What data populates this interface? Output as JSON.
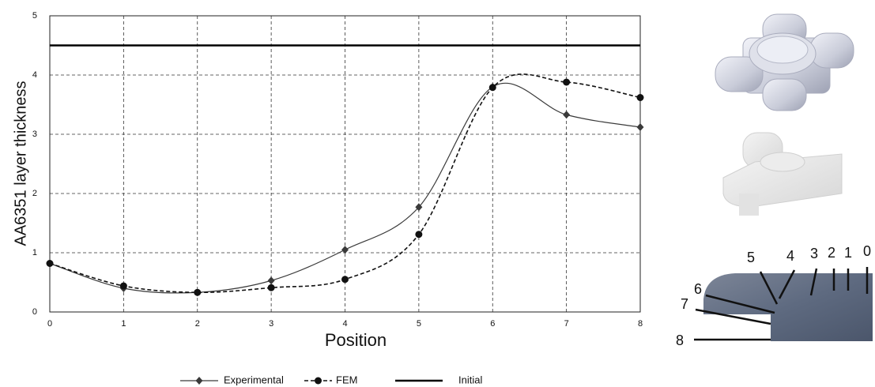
{
  "chart_data": {
    "type": "line",
    "x_label": "Position",
    "y_label": "AA6351 layer thickness",
    "x": [
      0,
      1,
      2,
      3,
      4,
      5,
      6,
      7,
      8
    ],
    "series": [
      {
        "name": "Experimental",
        "color": "#3a3a3a",
        "line_style": "solid",
        "marker": "diamond",
        "smooth": true,
        "values": [
          0.82,
          0.4,
          0.33,
          0.53,
          1.05,
          1.77,
          3.8,
          3.33,
          3.12
        ]
      },
      {
        "name": "FEM",
        "color": "#111111",
        "line_style": "dashed",
        "marker": "square",
        "smooth": true,
        "values": [
          0.82,
          0.44,
          0.33,
          0.41,
          0.55,
          1.31,
          3.79,
          3.88,
          3.62
        ]
      },
      {
        "name": "Initial",
        "color": "#000000",
        "line_style": "thick",
        "marker": "none",
        "smooth": false,
        "values": [
          4.5,
          4.5,
          4.5,
          4.5,
          4.5,
          4.5,
          4.5,
          4.5,
          4.5
        ]
      }
    ],
    "xlim": [
      0,
      8
    ],
    "xticks": [
      0,
      1,
      2,
      3,
      4,
      5,
      6,
      7,
      8
    ],
    "ylim": [
      0,
      5
    ],
    "yticks": [
      0,
      1,
      2,
      3,
      4,
      5
    ],
    "grid": true,
    "legend": "bottom"
  },
  "figure": {
    "section_labels": [
      "0",
      "1",
      "2",
      "3",
      "4",
      "5",
      "6",
      "7",
      "8"
    ]
  }
}
